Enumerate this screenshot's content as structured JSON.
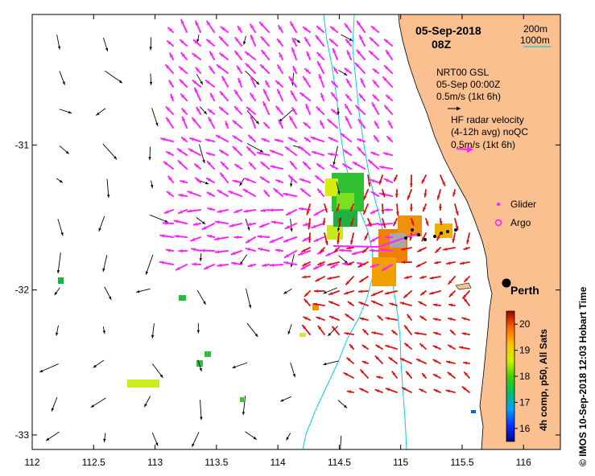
{
  "title": {
    "date": "05-Sep-2018",
    "time": "08Z"
  },
  "isobath_legend": {
    "depth_a": "200m",
    "depth_b": "1000m"
  },
  "model_legend": {
    "line1": "NRT00 GSL",
    "line2": "05-Sep 00:00Z",
    "scale": "0.5m/s (1kt 6h)"
  },
  "radar_legend": {
    "line1": "HF radar velocity",
    "line2": "(4-12h avg) noQC",
    "scale": "0.5m/s (1kt 6h)"
  },
  "symbols": {
    "glider": "Glider",
    "argo": "Argo"
  },
  "place": {
    "name": "Perth",
    "lon": 115.86,
    "lat": -31.95
  },
  "colorbar": {
    "label": "4h comp, p50, All Sats",
    "ticks": [
      "16",
      "17",
      "18",
      "19",
      "20"
    ],
    "min": 15.5,
    "max": 20.5
  },
  "side_label": "© IMOS 10-Sep-2018 12:03 Hobart Time",
  "axes": {
    "x_ticks": [
      "112",
      "112.5",
      "113",
      "113.5",
      "114",
      "114.5",
      "115",
      "115.5",
      "116"
    ],
    "y_ticks": [
      "-31",
      "-32",
      "-33"
    ],
    "xlim": [
      112,
      116.3
    ],
    "ylim": [
      -33.1,
      -30.1
    ]
  },
  "colors": {
    "land": "#fac090",
    "isobath": "#00d0e0",
    "model_arrow": "#000000",
    "radar_arrow": "#ff22ff",
    "obs_arrow": "#dd1111",
    "perth_marker": "#000000"
  }
}
